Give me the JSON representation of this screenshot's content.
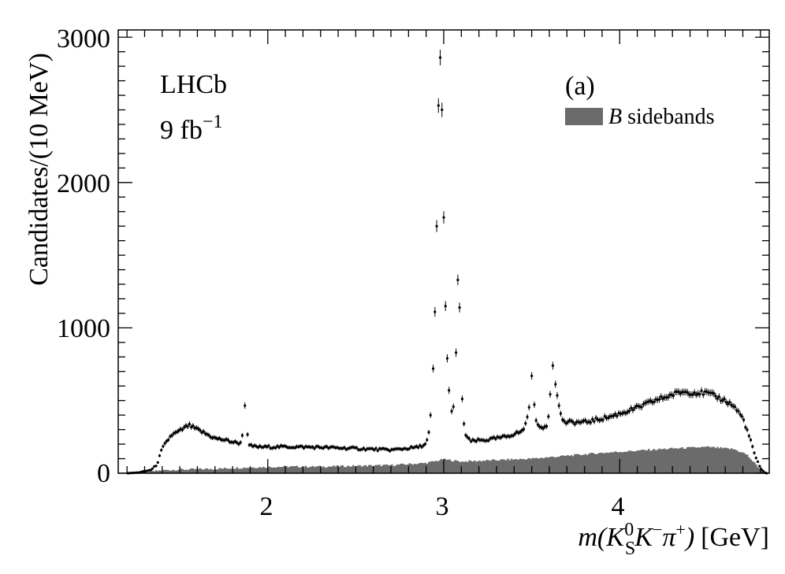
{
  "chart_data": {
    "type": "scatter",
    "xlabel_parts": {
      "pre": "m(K",
      "sub": "S",
      "sup": "0",
      "mid": "K",
      "sup2": "−",
      "pi": "π",
      "sup3": "+",
      "post": ")",
      "units": "[GeV]"
    },
    "ylabel": "Candidates/(10 MeV)",
    "xlim": [
      1.15,
      4.85
    ],
    "ylim": [
      0,
      3050
    ],
    "x_ticks": [
      2,
      3,
      4
    ],
    "x_tick_labels": [
      "2",
      "3",
      "4"
    ],
    "y_ticks": [
      0,
      1000,
      2000,
      3000
    ],
    "y_tick_labels": [
      "0",
      "1000",
      "2000",
      "3000"
    ],
    "annotations": {
      "experiment": "LHCb",
      "lumi_main": "9 fb",
      "lumi_sup": "−1",
      "panel": "(a)"
    },
    "legend": {
      "placement": "top-right",
      "entry_italic": "B",
      "entry_rest": " sidebands"
    },
    "colors": {
      "data": "#000000",
      "sidebands": "#6b6b6b"
    },
    "data_control_points": [
      [
        1.2,
        0
      ],
      [
        1.26,
        4
      ],
      [
        1.31,
        15
      ],
      [
        1.34,
        25
      ],
      [
        1.37,
        60
      ],
      [
        1.4,
        170
      ],
      [
        1.45,
        260
      ],
      [
        1.5,
        290
      ],
      [
        1.55,
        330
      ],
      [
        1.6,
        300
      ],
      [
        1.65,
        270
      ],
      [
        1.7,
        240
      ],
      [
        1.75,
        230
      ],
      [
        1.8,
        215
      ],
      [
        1.85,
        205
      ],
      [
        1.87,
        460
      ],
      [
        1.89,
        190
      ],
      [
        1.95,
        180
      ],
      [
        2.1,
        182
      ],
      [
        2.3,
        178
      ],
      [
        2.5,
        170
      ],
      [
        2.7,
        160
      ],
      [
        2.85,
        178
      ],
      [
        2.9,
        200
      ],
      [
        2.92,
        300
      ],
      [
        2.93,
        480
      ],
      [
        2.94,
        720
      ],
      [
        2.95,
        1110
      ],
      [
        2.96,
        1700
      ],
      [
        2.97,
        2530
      ],
      [
        2.98,
        2860
      ],
      [
        2.99,
        2500
      ],
      [
        3.0,
        1760
      ],
      [
        3.01,
        1150
      ],
      [
        3.02,
        790
      ],
      [
        3.03,
        570
      ],
      [
        3.04,
        430
      ],
      [
        3.05,
        400
      ],
      [
        3.06,
        500
      ],
      [
        3.07,
        830
      ],
      [
        3.08,
        1330
      ],
      [
        3.09,
        1140
      ],
      [
        3.1,
        580
      ],
      [
        3.12,
        270
      ],
      [
        3.15,
        220
      ],
      [
        3.25,
        230
      ],
      [
        3.35,
        250
      ],
      [
        3.45,
        290
      ],
      [
        3.48,
        400
      ],
      [
        3.5,
        670
      ],
      [
        3.52,
        390
      ],
      [
        3.55,
        300
      ],
      [
        3.59,
        330
      ],
      [
        3.61,
        620
      ],
      [
        3.62,
        740
      ],
      [
        3.63,
        680
      ],
      [
        3.65,
        480
      ],
      [
        3.68,
        350
      ],
      [
        3.8,
        350
      ],
      [
        3.95,
        390
      ],
      [
        4.1,
        450
      ],
      [
        4.2,
        500
      ],
      [
        4.35,
        560
      ],
      [
        4.5,
        550
      ],
      [
        4.6,
        500
      ],
      [
        4.65,
        460
      ],
      [
        4.7,
        380
      ],
      [
        4.74,
        240
      ],
      [
        4.77,
        120
      ],
      [
        4.8,
        30
      ],
      [
        4.83,
        0
      ]
    ],
    "data_spike_points": [
      [
        1.87,
        465
      ],
      [
        2.94,
        720
      ],
      [
        2.95,
        1110
      ],
      [
        2.96,
        1700
      ],
      [
        2.97,
        2530
      ],
      [
        2.98,
        2860
      ],
      [
        2.99,
        2500
      ],
      [
        3.0,
        1760
      ],
      [
        3.01,
        1150
      ],
      [
        3.02,
        790
      ],
      [
        3.03,
        570
      ],
      [
        3.07,
        830
      ],
      [
        3.08,
        1330
      ],
      [
        3.09,
        1140
      ],
      [
        3.5,
        670
      ],
      [
        3.62,
        740
      ]
    ],
    "sideband_control_points": [
      [
        1.2,
        0
      ],
      [
        1.3,
        5
      ],
      [
        1.4,
        20
      ],
      [
        1.5,
        25
      ],
      [
        1.7,
        30
      ],
      [
        1.9,
        40
      ],
      [
        2.1,
        45
      ],
      [
        2.3,
        45
      ],
      [
        2.5,
        50
      ],
      [
        2.7,
        55
      ],
      [
        2.9,
        70
      ],
      [
        3.0,
        95
      ],
      [
        3.1,
        80
      ],
      [
        3.3,
        90
      ],
      [
        3.5,
        100
      ],
      [
        3.7,
        120
      ],
      [
        3.9,
        140
      ],
      [
        4.1,
        155
      ],
      [
        4.3,
        170
      ],
      [
        4.5,
        180
      ],
      [
        4.65,
        165
      ],
      [
        4.72,
        130
      ],
      [
        4.78,
        50
      ],
      [
        4.83,
        0
      ]
    ]
  }
}
